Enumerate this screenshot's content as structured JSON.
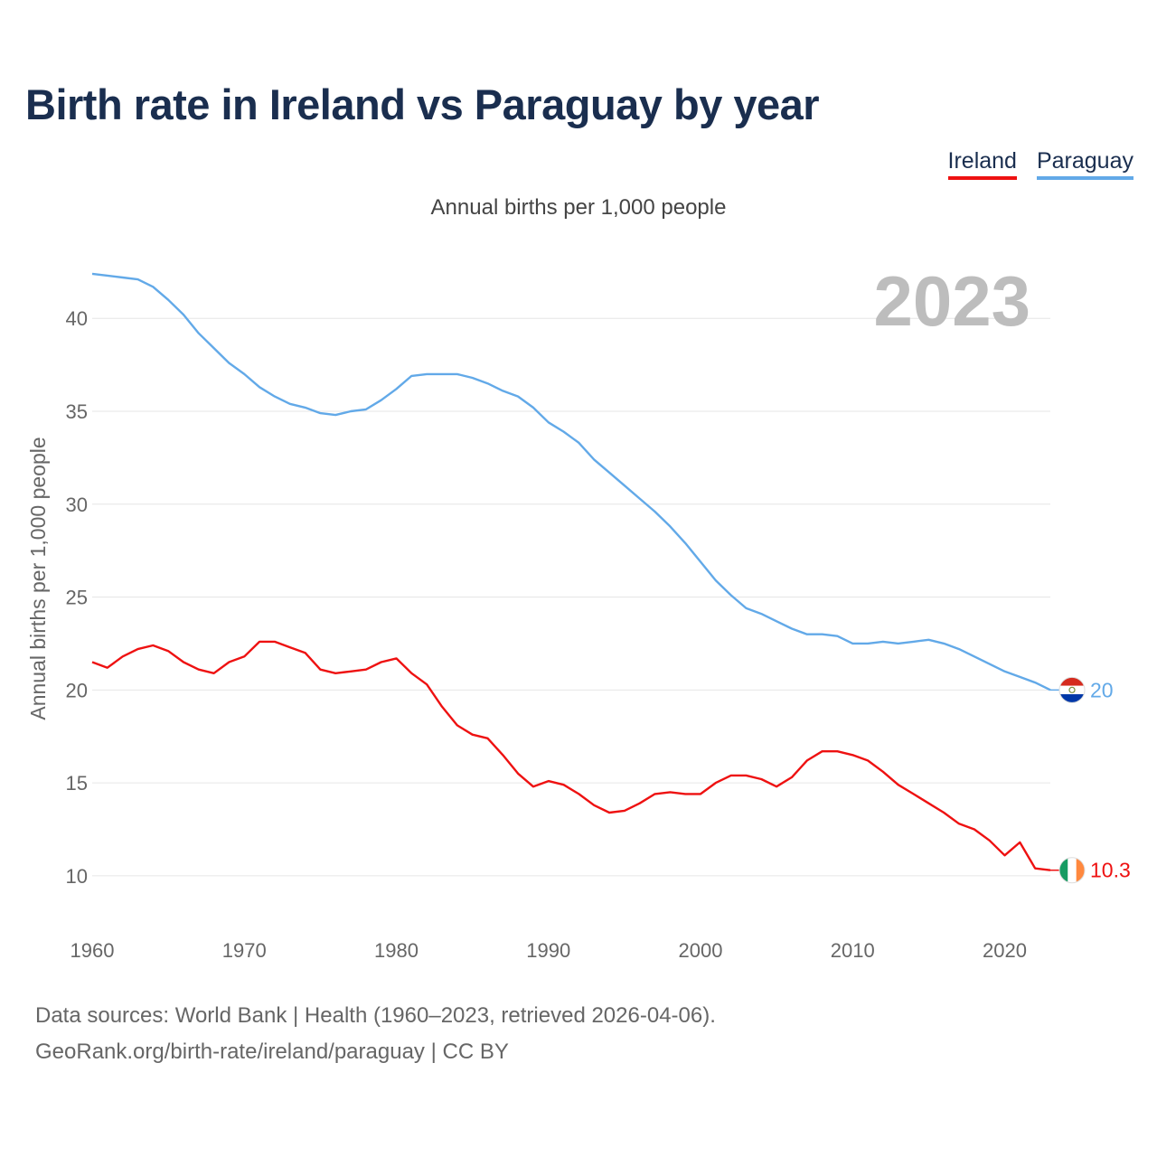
{
  "header": {
    "title": "Birth rate in Ireland vs Paraguay by year"
  },
  "legend": {
    "items": [
      {
        "label": "Ireland",
        "color": "#ee1111"
      },
      {
        "label": "Paraguay",
        "color": "#62a9e8"
      }
    ]
  },
  "subtitle": "Annual births per 1,000 people",
  "footer": {
    "line1": "Data sources: World Bank | Health (1960–2023, retrieved 2026-04-06).",
    "line2": "GeoRank.org/birth-rate/ireland/paraguay | CC BY"
  },
  "chart_data": {
    "type": "line",
    "title": "Birth rate in Ireland vs Paraguay by year",
    "ylabel": "Annual births per 1,000 people",
    "xlabel": "",
    "year_label": "2023",
    "xlim": [
      1960,
      2023
    ],
    "ylim": [
      8,
      44
    ],
    "x_ticks": [
      1960,
      1970,
      1980,
      1990,
      2000,
      2010,
      2020
    ],
    "y_ticks": [
      10,
      15,
      20,
      25,
      30,
      35,
      40
    ],
    "grid": true,
    "x": [
      1960,
      1961,
      1962,
      1963,
      1964,
      1965,
      1966,
      1967,
      1968,
      1969,
      1970,
      1971,
      1972,
      1973,
      1974,
      1975,
      1976,
      1977,
      1978,
      1979,
      1980,
      1981,
      1982,
      1983,
      1984,
      1985,
      1986,
      1987,
      1988,
      1989,
      1990,
      1991,
      1992,
      1993,
      1994,
      1995,
      1996,
      1997,
      1998,
      1999,
      2000,
      2001,
      2002,
      2003,
      2004,
      2005,
      2006,
      2007,
      2008,
      2009,
      2010,
      2011,
      2012,
      2013,
      2014,
      2015,
      2016,
      2017,
      2018,
      2019,
      2020,
      2021,
      2022,
      2023
    ],
    "series": [
      {
        "name": "Ireland",
        "color": "#ee1111",
        "end_label": "10.3",
        "values": [
          21.5,
          21.2,
          21.8,
          22.2,
          22.4,
          22.1,
          21.5,
          21.1,
          20.9,
          21.5,
          21.8,
          22.6,
          22.6,
          22.3,
          22.0,
          21.1,
          20.9,
          21.0,
          21.1,
          21.5,
          21.7,
          20.9,
          20.3,
          19.1,
          18.1,
          17.6,
          17.4,
          16.5,
          15.5,
          14.8,
          15.1,
          14.9,
          14.4,
          13.8,
          13.4,
          13.5,
          13.9,
          14.4,
          14.5,
          14.4,
          14.4,
          15.0,
          15.4,
          15.4,
          15.2,
          14.8,
          15.3,
          16.2,
          16.7,
          16.7,
          16.5,
          16.2,
          15.6,
          14.9,
          14.4,
          13.9,
          13.4,
          12.8,
          12.5,
          11.9,
          11.1,
          11.8,
          10.4,
          10.3
        ]
      },
      {
        "name": "Paraguay",
        "color": "#62a9e8",
        "end_label": "20",
        "values": [
          42.4,
          42.3,
          42.2,
          42.1,
          41.7,
          41.0,
          40.2,
          39.2,
          38.4,
          37.6,
          37.0,
          36.3,
          35.8,
          35.4,
          35.2,
          34.9,
          34.8,
          35.0,
          35.1,
          35.6,
          36.2,
          36.9,
          37.0,
          37.0,
          37.0,
          36.8,
          36.5,
          36.1,
          35.8,
          35.2,
          34.4,
          33.9,
          33.3,
          32.4,
          31.7,
          31.0,
          30.3,
          29.6,
          28.8,
          27.9,
          26.9,
          25.9,
          25.1,
          24.4,
          24.1,
          23.7,
          23.3,
          23.0,
          23.0,
          22.9,
          22.5,
          22.5,
          22.6,
          22.5,
          22.6,
          22.7,
          22.5,
          22.2,
          21.8,
          21.4,
          21.0,
          20.7,
          20.4,
          20.0
        ]
      }
    ]
  }
}
